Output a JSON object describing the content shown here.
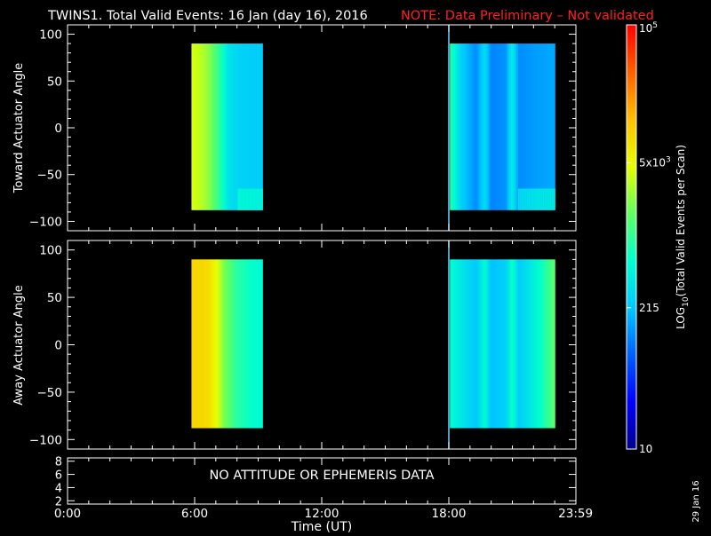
{
  "title": {
    "main": "TWINS1. Total Valid Events: 16 Jan (day  16), 2016",
    "note": "NOTE: Data Preliminary – Not validated",
    "note_color": "#ff2020"
  },
  "date_stamp": "29 Jan 16",
  "no_data_message": "NO ATTITUDE OR EPHEMERIS DATA",
  "colorbar": {
    "label": "LOG10(Total Valid Events per Scan)",
    "label_prefix": "LOG",
    "label_sub": "10",
    "label_suffix": "(Total Valid Events per Scan)",
    "scale": "log",
    "min": 10,
    "max": 100000,
    "ticks": [
      {
        "value": 100000,
        "text": "10",
        "sup": "5"
      },
      {
        "value": 5000,
        "text": "5x10",
        "sup": "3"
      },
      {
        "value": 215,
        "text": "215",
        "sup": ""
      },
      {
        "value": 10,
        "text": "10",
        "sup": ""
      }
    ],
    "colormap": [
      "#00008c",
      "#0000ff",
      "#0060ff",
      "#00c8ff",
      "#00ffd0",
      "#60ff60",
      "#e8ff00",
      "#ffc000",
      "#ff6000",
      "#ff0000"
    ]
  },
  "chart_data": [
    {
      "type": "heatmap",
      "ylabel": "Toward Actuator Angle",
      "xlim": [
        0,
        24
      ],
      "ylim": [
        -110,
        110
      ],
      "yticks": [
        -100,
        -50,
        0,
        50,
        100
      ],
      "ytick_labels": [
        "−100",
        "−50",
        "0",
        "50",
        "100"
      ],
      "angle_range": [
        -88,
        90
      ],
      "blocks": [
        {
          "t_start": 5.85,
          "t_end": 9.2,
          "profile": [
            [
              5.85,
              4200
            ],
            [
              6.3,
              3300
            ],
            [
              6.7,
              2200
            ],
            [
              7.2,
              900
            ],
            [
              7.6,
              350
            ],
            [
              8.2,
              260
            ],
            [
              9.2,
              240
            ]
          ],
          "bottom_enhancement": 2.0
        },
        {
          "t_start": 18.05,
          "t_end": 23.0,
          "profile": [
            [
              18.05,
              900
            ],
            [
              18.6,
              250
            ],
            [
              19.3,
              120
            ],
            [
              19.7,
              330
            ],
            [
              20.0,
              110
            ],
            [
              20.7,
              130
            ],
            [
              21.0,
              450
            ],
            [
              21.3,
              120
            ],
            [
              22.0,
              140
            ],
            [
              23.0,
              160
            ]
          ],
          "bottom_enhancement": 2.5
        }
      ]
    },
    {
      "type": "heatmap",
      "ylabel": "Away Actuator Angle",
      "xlim": [
        0,
        24
      ],
      "ylim": [
        -110,
        110
      ],
      "yticks": [
        -100,
        -50,
        0,
        50,
        100
      ],
      "ytick_labels": [
        "−100",
        "−50",
        "0",
        "50",
        "100"
      ],
      "angle_range": [
        -88,
        90
      ],
      "blocks": [
        {
          "t_start": 5.85,
          "t_end": 9.2,
          "profile": [
            [
              5.85,
              9000
            ],
            [
              6.6,
              8500
            ],
            [
              7.0,
              5000
            ],
            [
              7.4,
              2000
            ],
            [
              8.0,
              900
            ],
            [
              8.6,
              650
            ],
            [
              9.2,
              550
            ]
          ],
          "bottom_enhancement": 1.0
        },
        {
          "t_start": 18.05,
          "t_end": 23.0,
          "profile": [
            [
              18.05,
              600
            ],
            [
              18.6,
              380
            ],
            [
              19.3,
              220
            ],
            [
              19.7,
              600
            ],
            [
              20.0,
              200
            ],
            [
              20.7,
              260
            ],
            [
              21.0,
              700
            ],
            [
              21.3,
              240
            ],
            [
              22.0,
              450
            ],
            [
              22.5,
              800
            ],
            [
              23.0,
              1600
            ]
          ],
          "bottom_enhancement": 1.0
        }
      ]
    },
    {
      "type": "line",
      "ylabel": "",
      "xlim": [
        0,
        24
      ],
      "ylim": [
        1.5,
        8.5
      ],
      "yticks": [
        2,
        4,
        6,
        8
      ],
      "ytick_labels": [
        "2",
        "4",
        "6",
        "8"
      ],
      "values": []
    }
  ],
  "x_axis": {
    "label": "Time (UT)",
    "ticks": [
      0,
      6,
      12,
      18,
      23.983
    ],
    "tick_labels": [
      "0:00",
      "6:00",
      "12:00",
      "18:00",
      "23:59"
    ]
  },
  "marker_time": 18.0,
  "marker_color": "#6fd2ff"
}
